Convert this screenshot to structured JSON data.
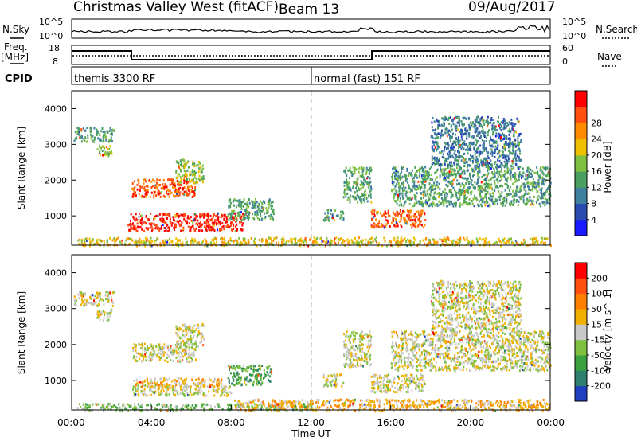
{
  "header": {
    "title": "Christmas Valley West (fitACF)",
    "beam": "Beam 13",
    "date": "09/Aug/2017"
  },
  "noise_panel": {
    "left_label": "N.Sky",
    "left_top": "10^5",
    "left_bottom": "10^0",
    "right_label": "N.Search",
    "right_top": "10^5",
    "right_bottom": "10^0"
  },
  "freq_panel": {
    "label_line1": "Freq.",
    "label_line2": "[MHz]",
    "left_top": "18",
    "left_bottom": "8",
    "right_label": "Nave",
    "right_top": "60",
    "right_bottom": "0"
  },
  "cpid": {
    "label": "CPID",
    "mode1": "themis 3300 RF",
    "mode2": "normal (fast) 151 RF",
    "switch_hour": 12.0
  },
  "chart_data": [
    {
      "type": "heatmap",
      "panel": "power",
      "ylabel": "Slant Range [km]",
      "y_ticks": [
        1000,
        2000,
        3000,
        4000
      ],
      "ylim": [
        180,
        4500
      ],
      "xlim": [
        0,
        24
      ],
      "colorbar_label": "Power [dB]",
      "colorbar_ticks": [
        4,
        8,
        12,
        16,
        20,
        24,
        28
      ],
      "colorbar_colors": [
        "#1a1aff",
        "#2a4bb0",
        "#3f7f9f",
        "#4aa060",
        "#80c040",
        "#f0c000",
        "#ff8c00",
        "#ff5010",
        "#ff0000"
      ],
      "regions": [
        {
          "t0": 0.1,
          "t1": 2.1,
          "r0": 3100,
          "r1": 3500,
          "level": 3
        },
        {
          "t0": 1.2,
          "t1": 2.0,
          "r0": 2700,
          "r1": 3000,
          "level": 4
        },
        {
          "t0": 3.0,
          "t1": 6.2,
          "r0": 1550,
          "r1": 2050,
          "level": 7
        },
        {
          "t0": 5.2,
          "t1": 6.6,
          "r0": 1950,
          "r1": 2600,
          "level": 4
        },
        {
          "t0": 2.8,
          "t1": 8.6,
          "r0": 600,
          "r1": 1100,
          "level": 8
        },
        {
          "t0": 7.8,
          "t1": 10.1,
          "r0": 900,
          "r1": 1500,
          "level": 3
        },
        {
          "t0": 0.2,
          "t1": 24.0,
          "r0": 190,
          "r1": 420,
          "level": 5
        },
        {
          "t0": 12.6,
          "t1": 13.6,
          "r0": 900,
          "r1": 1200,
          "level": 3
        },
        {
          "t0": 13.6,
          "t1": 15.0,
          "r0": 1400,
          "r1": 2400,
          "level": 3
        },
        {
          "t0": 15.0,
          "t1": 17.7,
          "r0": 700,
          "r1": 1200,
          "level": 7
        },
        {
          "t0": 16.0,
          "t1": 24.0,
          "r0": 1300,
          "r1": 2400,
          "level": 3
        },
        {
          "t0": 18.0,
          "t1": 22.5,
          "r0": 2400,
          "r1": 3800,
          "level": 2
        }
      ]
    },
    {
      "type": "heatmap",
      "panel": "velocity",
      "ylabel": "Slant Range [km]",
      "y_ticks": [
        1000,
        2000,
        3000,
        4000
      ],
      "ylim": [
        180,
        4500
      ],
      "xlim": [
        0,
        24
      ],
      "x_ticks": [
        "00:00",
        "04:00",
        "08:00",
        "12:00",
        "16:00",
        "20:00",
        "00:00"
      ],
      "xlabel": "Time UT",
      "colorbar_label": "Velocity [m s^-1]",
      "colorbar_ticks": [
        200,
        100,
        50,
        15,
        -15,
        -50,
        -100,
        -200
      ],
      "colorbar_colors": [
        "#2040c0",
        "#2f7f6f",
        "#3aa040",
        "#80c040",
        "#c8c8c8",
        "#f0b000",
        "#ff8000",
        "#ff5010",
        "#ff0000"
      ],
      "regions": [
        {
          "t0": 0.1,
          "t1": 2.1,
          "r0": 3100,
          "r1": 3500,
          "level": 4
        },
        {
          "t0": 1.2,
          "t1": 2.0,
          "r0": 2700,
          "r1": 3000,
          "level": 4
        },
        {
          "t0": 3.0,
          "t1": 6.2,
          "r0": 1550,
          "r1": 2050,
          "level": 4
        },
        {
          "t0": 5.2,
          "t1": 6.6,
          "r0": 1950,
          "r1": 2600,
          "level": 4
        },
        {
          "t0": 3.0,
          "t1": 8.0,
          "r0": 600,
          "r1": 900,
          "level": 4
        },
        {
          "t0": 3.0,
          "t1": 7.5,
          "r0": 850,
          "r1": 1100,
          "level": 5
        },
        {
          "t0": 7.8,
          "t1": 10.0,
          "r0": 900,
          "r1": 1450,
          "level": 2
        },
        {
          "t0": 0.2,
          "t1": 12.0,
          "r0": 190,
          "r1": 380,
          "level": 3
        },
        {
          "t0": 8.0,
          "t1": 24.0,
          "r0": 190,
          "r1": 500,
          "level": 5
        },
        {
          "t0": 12.6,
          "t1": 13.6,
          "r0": 850,
          "r1": 1200,
          "level": 4
        },
        {
          "t0": 13.6,
          "t1": 15.0,
          "r0": 1400,
          "r1": 2400,
          "level": 4
        },
        {
          "t0": 15.0,
          "t1": 17.7,
          "r0": 700,
          "r1": 1200,
          "level": 4
        },
        {
          "t0": 16.0,
          "t1": 24.0,
          "r0": 1300,
          "r1": 2400,
          "level": 4
        },
        {
          "t0": 18.0,
          "t1": 22.5,
          "r0": 2400,
          "r1": 3800,
          "level": 4
        }
      ]
    }
  ]
}
